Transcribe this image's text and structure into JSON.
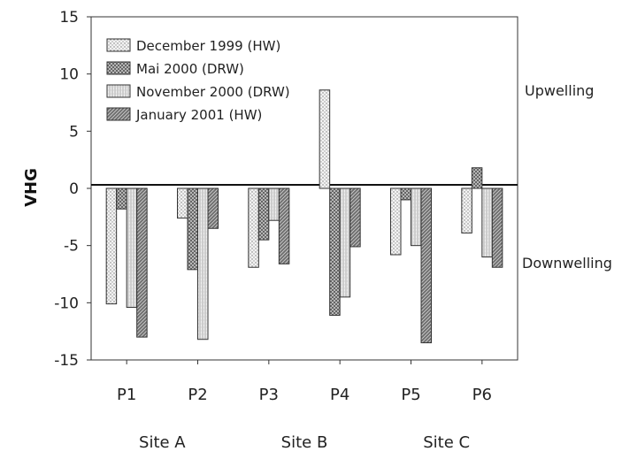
{
  "chart_data": {
    "type": "bar",
    "categories": [
      "P1",
      "P2",
      "P3",
      "P4",
      "P5",
      "P6"
    ],
    "site_labels": [
      "Site A",
      "Site B",
      "Site C"
    ],
    "series": [
      {
        "name": "December 1999 (HW)",
        "values": [
          -10.1,
          -2.6,
          -6.9,
          8.6,
          -5.8,
          -3.9
        ],
        "pattern": "dots"
      },
      {
        "name": "Mai 2000 (DRW)",
        "values": [
          -1.8,
          -7.1,
          -4.5,
          -11.1,
          -1.0,
          1.8
        ],
        "pattern": "crosshatch"
      },
      {
        "name": "November 2000 (DRW)",
        "values": [
          -10.4,
          -13.2,
          -2.8,
          -9.5,
          -5.0,
          -6.0
        ],
        "pattern": "vlines"
      },
      {
        "name": "January 2001 (HW)",
        "values": [
          -13.0,
          -3.5,
          -6.6,
          -5.1,
          -13.5,
          -6.9
        ],
        "pattern": "diagonal"
      }
    ],
    "ylabel": "VHG",
    "xlabel": "",
    "ylim": [
      -15,
      15
    ],
    "yticks": [
      15,
      10,
      5,
      0,
      -5,
      -10,
      -15
    ],
    "annotations": {
      "upwelling": "Upwelling",
      "downwelling": "Downwelling"
    },
    "legend_position": "top-left",
    "grid": false
  }
}
